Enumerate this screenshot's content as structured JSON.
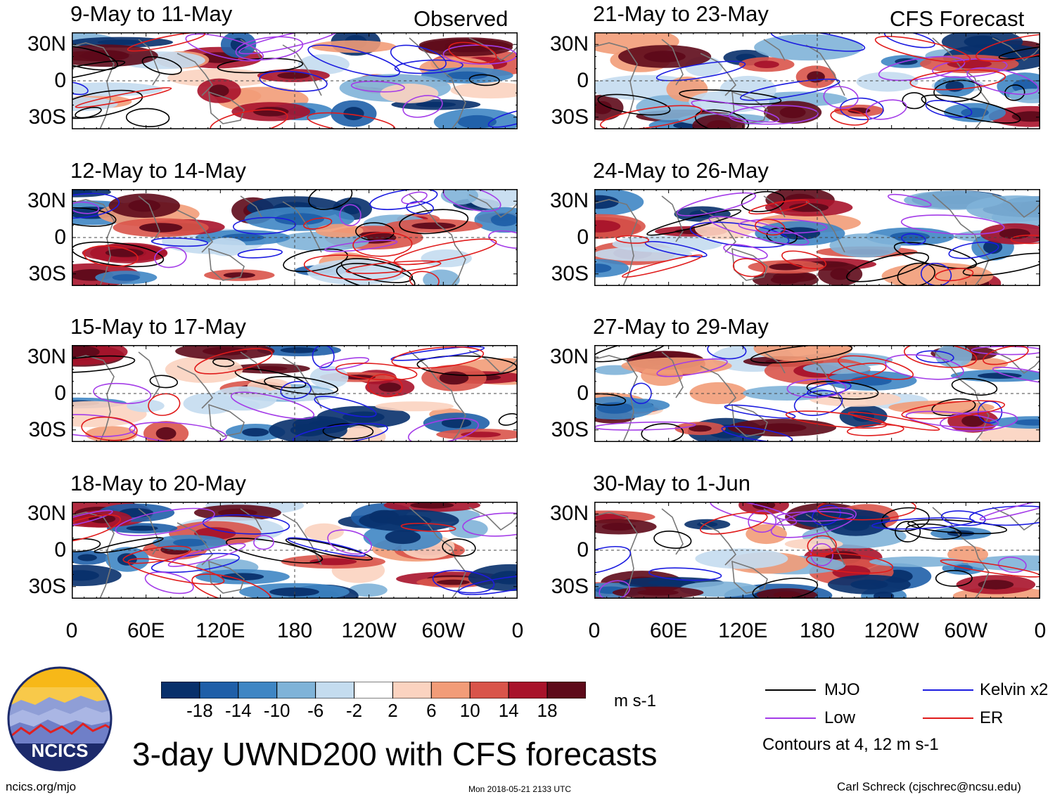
{
  "chart_data": {
    "type": "heatmap",
    "title": "3-day UWND200 with CFS forecasts",
    "variable": "200-hPa zonal wind (UWND200)",
    "units": "m s-1",
    "lat_labels": [
      "30N",
      "0",
      "30S"
    ],
    "lat_values": [
      30,
      0,
      -30
    ],
    "lon_labels": [
      "0",
      "60E",
      "120E",
      "180",
      "120W",
      "60W",
      "0"
    ],
    "lon_values": [
      0,
      60,
      120,
      180,
      240,
      300,
      360
    ],
    "lon_range": [
      0,
      360
    ],
    "lat_range": [
      -40,
      40
    ],
    "columns": [
      {
        "header": "Observed",
        "panels": [
          {
            "title": "9-May to 11-May"
          },
          {
            "title": "12-May to 14-May"
          },
          {
            "title": "15-May to 17-May"
          },
          {
            "title": "18-May to 20-May"
          }
        ]
      },
      {
        "header": "CFS Forecast",
        "panels": [
          {
            "title": "21-May to 23-May"
          },
          {
            "title": "24-May to 26-May"
          },
          {
            "title": "27-May to 29-May"
          },
          {
            "title": "30-May to 1-Jun"
          }
        ]
      }
    ],
    "colorbar": {
      "labels": [
        "-18",
        "-14",
        "-10",
        "-6",
        "-2",
        "2",
        "6",
        "10",
        "14",
        "18"
      ],
      "colors": [
        "#08306b",
        "#1f5fa8",
        "#3f86c4",
        "#7fb3d8",
        "#c4dcef",
        "#ffffff",
        "#fbd3c0",
        "#f29c78",
        "#d9544a",
        "#a8132b",
        "#5e0a1a"
      ]
    },
    "contours": {
      "legend": [
        {
          "label": "MJO",
          "color": "#000000"
        },
        {
          "label": "Kelvin x2",
          "color": "#1b1be0"
        },
        {
          "label": "Low",
          "color": "#a43ce8"
        },
        {
          "label": "ER",
          "color": "#e01b1b"
        }
      ],
      "note": "Contours at 4, 12 m s-1"
    }
  },
  "branding": {
    "logo_text": "NCICS",
    "url": "ncics.org/mjo",
    "timestamp": "Mon 2018-05-21 2133 UTC",
    "author": "Carl Schreck (cjschrec@ncsu.edu)"
  }
}
